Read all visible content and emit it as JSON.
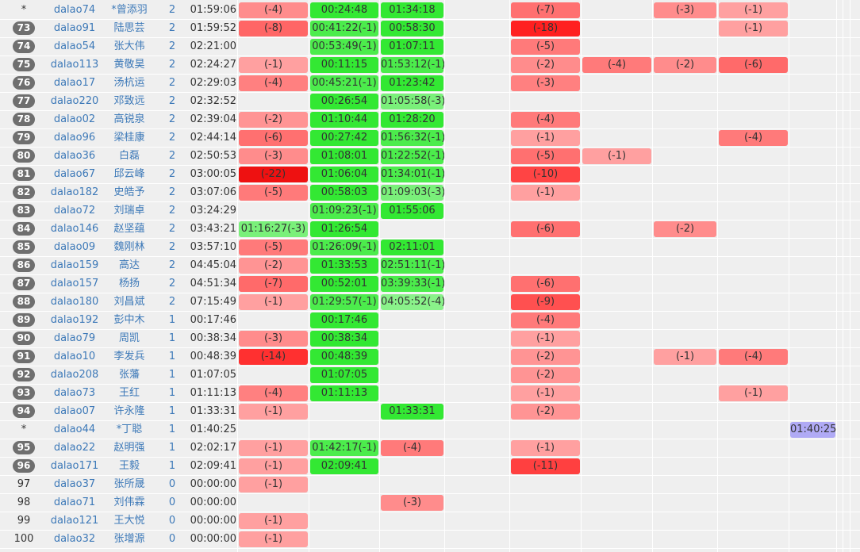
{
  "colors": {
    "badge": "#6f6f6f",
    "link": "#3d79b8",
    "first_solve": "#e00000",
    "lowest_penalty_hint": "#00ff00"
  },
  "rows": [
    {
      "rank": "*",
      "badge": false,
      "user": "dalao74",
      "name": "*曾添羽",
      "solved": "2",
      "penalty": "01:59:06",
      "cells": [
        "(-4)",
        "00:24:48",
        "01:34:18",
        "",
        "(-7)",
        "",
        "(-3)",
        "(-1)",
        "",
        ""
      ],
      "colors": [
        "#ff8c8c",
        "#33e833",
        "#33e833",
        "",
        "#ff7070",
        "",
        "#ff8c8c",
        "#ffa0a0",
        "",
        ""
      ]
    },
    {
      "rank": "73",
      "badge": true,
      "user": "dalao91",
      "name": "陆思芸",
      "solved": "2",
      "penalty": "01:59:52",
      "cells": [
        "(-8)",
        "00:41:22(-1)",
        "00:58:30",
        "",
        "(-18)",
        "",
        "",
        "(-1)",
        "",
        ""
      ],
      "colors": [
        "#ff6666",
        "#4cec4c",
        "#33e833",
        "",
        "#ff2020",
        "",
        "",
        "#ffa0a0",
        "",
        ""
      ]
    },
    {
      "rank": "74",
      "badge": true,
      "user": "dalao54",
      "name": "张大伟",
      "solved": "2",
      "penalty": "02:21:00",
      "cells": [
        "",
        "00:53:49(-1)",
        "01:07:11",
        "",
        "(-5)",
        "",
        "",
        "",
        "",
        ""
      ],
      "colors": [
        "",
        "#4cec4c",
        "#33e833",
        "",
        "#ff7a7a",
        "",
        "",
        "",
        "",
        ""
      ]
    },
    {
      "rank": "75",
      "badge": true,
      "user": "dalao113",
      "name": "黄敬昊",
      "solved": "2",
      "penalty": "02:24:27",
      "cells": [
        "(-1)",
        "00:11:15",
        "01:53:12(-1)",
        "",
        "(-2)",
        "(-4)",
        "(-2)",
        "(-6)",
        "",
        ""
      ],
      "colors": [
        "#ffa0a0",
        "#33e833",
        "#4cec4c",
        "",
        "#ff8c8c",
        "#ff7a7a",
        "#ff8c8c",
        "#ff6a6a",
        "",
        ""
      ]
    },
    {
      "rank": "76",
      "badge": true,
      "user": "dalao17",
      "name": "汤杭运",
      "solved": "2",
      "penalty": "02:29:03",
      "cells": [
        "(-4)",
        "00:45:21(-1)",
        "01:23:42",
        "",
        "(-3)",
        "",
        "",
        "",
        "",
        ""
      ],
      "colors": [
        "#ff8080",
        "#4cec4c",
        "#33e833",
        "",
        "#ff8080",
        "",
        "",
        "",
        "",
        ""
      ]
    },
    {
      "rank": "77",
      "badge": true,
      "user": "dalao220",
      "name": "邓致远",
      "solved": "2",
      "penalty": "02:32:52",
      "cells": [
        "",
        "00:26:54",
        "01:05:58(-3)",
        "",
        "",
        "",
        "",
        "",
        "",
        ""
      ],
      "colors": [
        "",
        "#33e833",
        "#7af07a",
        "",
        "",
        "",
        "",
        "",
        "",
        ""
      ]
    },
    {
      "rank": "78",
      "badge": true,
      "user": "dalao02",
      "name": "高锐泉",
      "solved": "2",
      "penalty": "02:39:04",
      "cells": [
        "(-2)",
        "01:10:44",
        "01:28:20",
        "",
        "(-4)",
        "",
        "",
        "",
        "",
        ""
      ],
      "colors": [
        "#ff9494",
        "#33e833",
        "#33e833",
        "",
        "#ff7a7a",
        "",
        "",
        "",
        "",
        ""
      ]
    },
    {
      "rank": "79",
      "badge": true,
      "user": "dalao96",
      "name": "梁桂康",
      "solved": "2",
      "penalty": "02:44:14",
      "cells": [
        "(-6)",
        "00:27:42",
        "01:56:32(-1)",
        "",
        "(-1)",
        "",
        "",
        "(-4)",
        "",
        ""
      ],
      "colors": [
        "#ff7070",
        "#33e833",
        "#4cec4c",
        "",
        "#ffa0a0",
        "",
        "",
        "#ff7a7a",
        "",
        ""
      ]
    },
    {
      "rank": "80",
      "badge": true,
      "user": "dalao36",
      "name": "白磊",
      "solved": "2",
      "penalty": "02:50:53",
      "cells": [
        "(-3)",
        "01:08:01",
        "01:22:52(-1)",
        "",
        "(-5)",
        "(-1)",
        "",
        "",
        "",
        ""
      ],
      "colors": [
        "#ff8c8c",
        "#33e833",
        "#4cec4c",
        "",
        "#ff7070",
        "#ffa0a0",
        "",
        "",
        "",
        ""
      ]
    },
    {
      "rank": "81",
      "badge": true,
      "user": "dalao67",
      "name": "邱云峰",
      "solved": "2",
      "penalty": "03:00:05",
      "cells": [
        "(-22)",
        "01:06:04",
        "01:34:01(-1)",
        "",
        "(-10)",
        "",
        "",
        "",
        "",
        ""
      ],
      "colors": [
        "#ee1111",
        "#33e833",
        "#4cec4c",
        "",
        "#ff4444",
        "",
        "",
        "",
        "",
        ""
      ]
    },
    {
      "rank": "82",
      "badge": true,
      "user": "dalao182",
      "name": "史皓予",
      "solved": "2",
      "penalty": "03:07:06",
      "cells": [
        "(-5)",
        "00:58:03",
        "01:09:03(-3)",
        "",
        "(-1)",
        "",
        "",
        "",
        "",
        ""
      ],
      "colors": [
        "#ff7a7a",
        "#33e833",
        "#7af07a",
        "",
        "#ffa0a0",
        "",
        "",
        "",
        "",
        ""
      ]
    },
    {
      "rank": "83",
      "badge": true,
      "user": "dalao72",
      "name": "刘瑞卓",
      "solved": "2",
      "penalty": "03:24:29",
      "cells": [
        "",
        "01:09:23(-1)",
        "01:55:06",
        "",
        "",
        "",
        "",
        "",
        "",
        ""
      ],
      "colors": [
        "",
        "#4cec4c",
        "#33e833",
        "",
        "",
        "",
        "",
        "",
        "",
        ""
      ]
    },
    {
      "rank": "84",
      "badge": true,
      "user": "dalao146",
      "name": "赵坚蕴",
      "solved": "2",
      "penalty": "03:43:21",
      "cells": [
        "01:16:27(-3)",
        "01:26:54",
        "",
        "",
        "(-6)",
        "",
        "(-2)",
        "",
        "",
        ""
      ],
      "colors": [
        "#7af07a",
        "#33e833",
        "",
        "",
        "#ff7070",
        "",
        "#ff8c8c",
        "",
        "",
        ""
      ]
    },
    {
      "rank": "85",
      "badge": true,
      "user": "dalao09",
      "name": "魏刚林",
      "solved": "2",
      "penalty": "03:57:10",
      "cells": [
        "(-5)",
        "01:26:09(-1)",
        "02:11:01",
        "",
        "",
        "",
        "",
        "",
        "",
        ""
      ],
      "colors": [
        "#ff7a7a",
        "#4cec4c",
        "#33e833",
        "",
        "",
        "",
        "",
        "",
        "",
        ""
      ]
    },
    {
      "rank": "86",
      "badge": true,
      "user": "dalao159",
      "name": "高达",
      "solved": "2",
      "penalty": "04:45:04",
      "cells": [
        "(-2)",
        "01:33:53",
        "02:51:11(-1)",
        "",
        "",
        "",
        "",
        "",
        "",
        ""
      ],
      "colors": [
        "#ff9494",
        "#33e833",
        "#4cec4c",
        "",
        "",
        "",
        "",
        "",
        "",
        ""
      ]
    },
    {
      "rank": "87",
      "badge": true,
      "user": "dalao157",
      "name": "杨扬",
      "solved": "2",
      "penalty": "04:51:34",
      "cells": [
        "(-7)",
        "00:52:01",
        "03:39:33(-1)",
        "",
        "(-6)",
        "",
        "",
        "",
        "",
        ""
      ],
      "colors": [
        "#ff6a6a",
        "#33e833",
        "#4cec4c",
        "",
        "#ff7070",
        "",
        "",
        "",
        "",
        ""
      ]
    },
    {
      "rank": "88",
      "badge": true,
      "user": "dalao180",
      "name": "刘昌斌",
      "solved": "2",
      "penalty": "07:15:49",
      "cells": [
        "(-1)",
        "01:29:57(-1)",
        "04:05:52(-4)",
        "",
        "(-9)",
        "",
        "",
        "",
        "",
        ""
      ],
      "colors": [
        "#ffa0a0",
        "#4cec4c",
        "#8af28a",
        "",
        "#ff5050",
        "",
        "",
        "",
        "",
        ""
      ]
    },
    {
      "rank": "89",
      "badge": true,
      "user": "dalao192",
      "name": "彭中木",
      "solved": "1",
      "penalty": "00:17:46",
      "cells": [
        "",
        "00:17:46",
        "",
        "",
        "(-4)",
        "",
        "",
        "",
        "",
        ""
      ],
      "colors": [
        "",
        "#33e833",
        "",
        "",
        "#ff7a7a",
        "",
        "",
        "",
        "",
        ""
      ]
    },
    {
      "rank": "90",
      "badge": true,
      "user": "dalao79",
      "name": "周凯",
      "solved": "1",
      "penalty": "00:38:34",
      "cells": [
        "(-3)",
        "00:38:34",
        "",
        "",
        "(-1)",
        "",
        "",
        "",
        "",
        ""
      ],
      "colors": [
        "#ff8c8c",
        "#33e833",
        "",
        "",
        "#ffa0a0",
        "",
        "",
        "",
        "",
        ""
      ]
    },
    {
      "rank": "91",
      "badge": true,
      "user": "dalao10",
      "name": "李发兵",
      "solved": "1",
      "penalty": "00:48:39",
      "cells": [
        "(-14)",
        "00:48:39",
        "",
        "",
        "(-2)",
        "",
        "(-1)",
        "(-4)",
        "",
        ""
      ],
      "colors": [
        "#ff3030",
        "#33e833",
        "",
        "",
        "#ff9494",
        "",
        "#ffa0a0",
        "#ff7a7a",
        "",
        ""
      ]
    },
    {
      "rank": "92",
      "badge": true,
      "user": "dalao208",
      "name": "张藩",
      "solved": "1",
      "penalty": "01:07:05",
      "cells": [
        "",
        "01:07:05",
        "",
        "",
        "(-2)",
        "",
        "",
        "",
        "",
        ""
      ],
      "colors": [
        "",
        "#33e833",
        "",
        "",
        "#ff9494",
        "",
        "",
        "",
        "",
        ""
      ]
    },
    {
      "rank": "93",
      "badge": true,
      "user": "dalao73",
      "name": "王红",
      "solved": "1",
      "penalty": "01:11:13",
      "cells": [
        "(-4)",
        "01:11:13",
        "",
        "",
        "(-1)",
        "",
        "",
        "(-1)",
        "",
        ""
      ],
      "colors": [
        "#ff8080",
        "#33e833",
        "",
        "",
        "#ffa0a0",
        "",
        "",
        "#ffa0a0",
        "",
        ""
      ]
    },
    {
      "rank": "94",
      "badge": true,
      "user": "dalao07",
      "name": "许永隆",
      "solved": "1",
      "penalty": "01:33:31",
      "cells": [
        "(-1)",
        "",
        "01:33:31",
        "",
        "(-2)",
        "",
        "",
        "",
        "",
        ""
      ],
      "colors": [
        "#ffa0a0",
        "",
        "#33e833",
        "",
        "#ff9494",
        "",
        "",
        "",
        "",
        ""
      ]
    },
    {
      "rank": "*",
      "badge": false,
      "user": "dalao44",
      "name": "*丁聪",
      "solved": "1",
      "penalty": "01:40:25",
      "cells": [
        "",
        "",
        "",
        "",
        "",
        "",
        "",
        "",
        "01:40:25",
        ""
      ],
      "colors": [
        "",
        "",
        "",
        "",
        "",
        "",
        "",
        "",
        "#b0aaf5",
        ""
      ]
    },
    {
      "rank": "95",
      "badge": true,
      "user": "dalao22",
      "name": "赵明强",
      "solved": "1",
      "penalty": "02:02:17",
      "cells": [
        "(-1)",
        "01:42:17(-1)",
        "(-4)",
        "",
        "(-1)",
        "",
        "",
        "",
        "",
        ""
      ],
      "colors": [
        "#ffa0a0",
        "#4cec4c",
        "#ff7a7a",
        "",
        "#ffa0a0",
        "",
        "",
        "",
        "",
        ""
      ]
    },
    {
      "rank": "96",
      "badge": true,
      "user": "dalao171",
      "name": "王毅",
      "solved": "1",
      "penalty": "02:09:41",
      "cells": [
        "(-1)",
        "02:09:41",
        "",
        "",
        "(-11)",
        "",
        "",
        "",
        "",
        ""
      ],
      "colors": [
        "#ffa0a0",
        "#33e833",
        "",
        "",
        "#ff4040",
        "",
        "",
        "",
        "",
        ""
      ]
    },
    {
      "rank": "97",
      "badge": false,
      "user": "dalao37",
      "name": "张所晟",
      "solved": "0",
      "penalty": "00:00:00",
      "cells": [
        "(-1)",
        "",
        "",
        "",
        "",
        "",
        "",
        "",
        "",
        ""
      ],
      "colors": [
        "#ffa0a0",
        "",
        "",
        "",
        "",
        "",
        "",
        "",
        "",
        ""
      ]
    },
    {
      "rank": "98",
      "badge": false,
      "user": "dalao71",
      "name": "刘伟霖",
      "solved": "0",
      "penalty": "00:00:00",
      "cells": [
        "",
        "",
        "(-3)",
        "",
        "",
        "",
        "",
        "",
        "",
        ""
      ],
      "colors": [
        "",
        "",
        "#ff8c8c",
        "",
        "",
        "",
        "",
        "",
        "",
        ""
      ]
    },
    {
      "rank": "99",
      "badge": false,
      "user": "dalao121",
      "name": "王大悦",
      "solved": "0",
      "penalty": "00:00:00",
      "cells": [
        "(-1)",
        "",
        "",
        "",
        "",
        "",
        "",
        "",
        "",
        ""
      ],
      "colors": [
        "#ffa0a0",
        "",
        "",
        "",
        "",
        "",
        "",
        "",
        "",
        ""
      ]
    },
    {
      "rank": "100",
      "badge": false,
      "user": "dalao32",
      "name": "张增源",
      "solved": "0",
      "penalty": "00:00:00",
      "cells": [
        "(-1)",
        "",
        "",
        "",
        "",
        "",
        "",
        "",
        "",
        ""
      ],
      "colors": [
        "#ffa0a0",
        "",
        "",
        "",
        "",
        "",
        "",
        "",
        "",
        ""
      ]
    }
  ]
}
